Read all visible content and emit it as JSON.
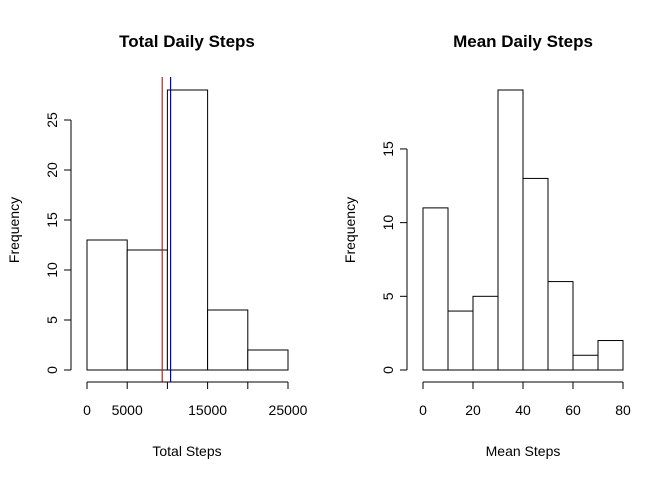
{
  "chart_data": [
    {
      "type": "bar",
      "title": "Total Daily Steps",
      "xlabel": "Total Steps",
      "ylabel": "Frequency",
      "xlim": [
        0,
        25000
      ],
      "ylim": [
        0,
        28
      ],
      "bins": [
        [
          0,
          5000
        ],
        [
          5000,
          10000
        ],
        [
          10000,
          15000
        ],
        [
          15000,
          20000
        ],
        [
          20000,
          25000
        ]
      ],
      "values": [
        13,
        12,
        28,
        6,
        2
      ],
      "x_ticks": [
        0,
        5000,
        15000,
        25000
      ],
      "x_tick_labels": [
        "0",
        "5000",
        "15000",
        "25000"
      ],
      "x_tick_marks": [
        0,
        5000,
        10000,
        15000,
        20000,
        25000
      ],
      "y_ticks": [
        0,
        5,
        10,
        15,
        20,
        25
      ],
      "y_tick_labels": [
        "0",
        "5",
        "10",
        "15",
        "20",
        "25"
      ],
      "vlines": [
        {
          "x": 9354,
          "color": "#b22222"
        },
        {
          "x": 10395,
          "color": "#0000cd"
        }
      ]
    },
    {
      "type": "bar",
      "title": "Mean Daily Steps",
      "xlabel": "Mean Steps",
      "ylabel": "Frequency",
      "xlim": [
        0,
        80
      ],
      "ylim": [
        0,
        19
      ],
      "bins": [
        [
          0,
          10
        ],
        [
          10,
          20
        ],
        [
          20,
          30
        ],
        [
          30,
          40
        ],
        [
          40,
          50
        ],
        [
          50,
          60
        ],
        [
          60,
          70
        ],
        [
          70,
          80
        ]
      ],
      "values": [
        11,
        4,
        5,
        19,
        13,
        6,
        1,
        2
      ],
      "x_ticks": [
        0,
        20,
        40,
        60,
        80
      ],
      "x_tick_labels": [
        "0",
        "20",
        "40",
        "60",
        "80"
      ],
      "x_tick_marks": [
        0,
        20,
        40,
        60,
        80
      ],
      "y_ticks": [
        0,
        5,
        10,
        15
      ],
      "y_tick_labels": [
        "0",
        "5",
        "10",
        "15"
      ],
      "vlines": []
    }
  ]
}
